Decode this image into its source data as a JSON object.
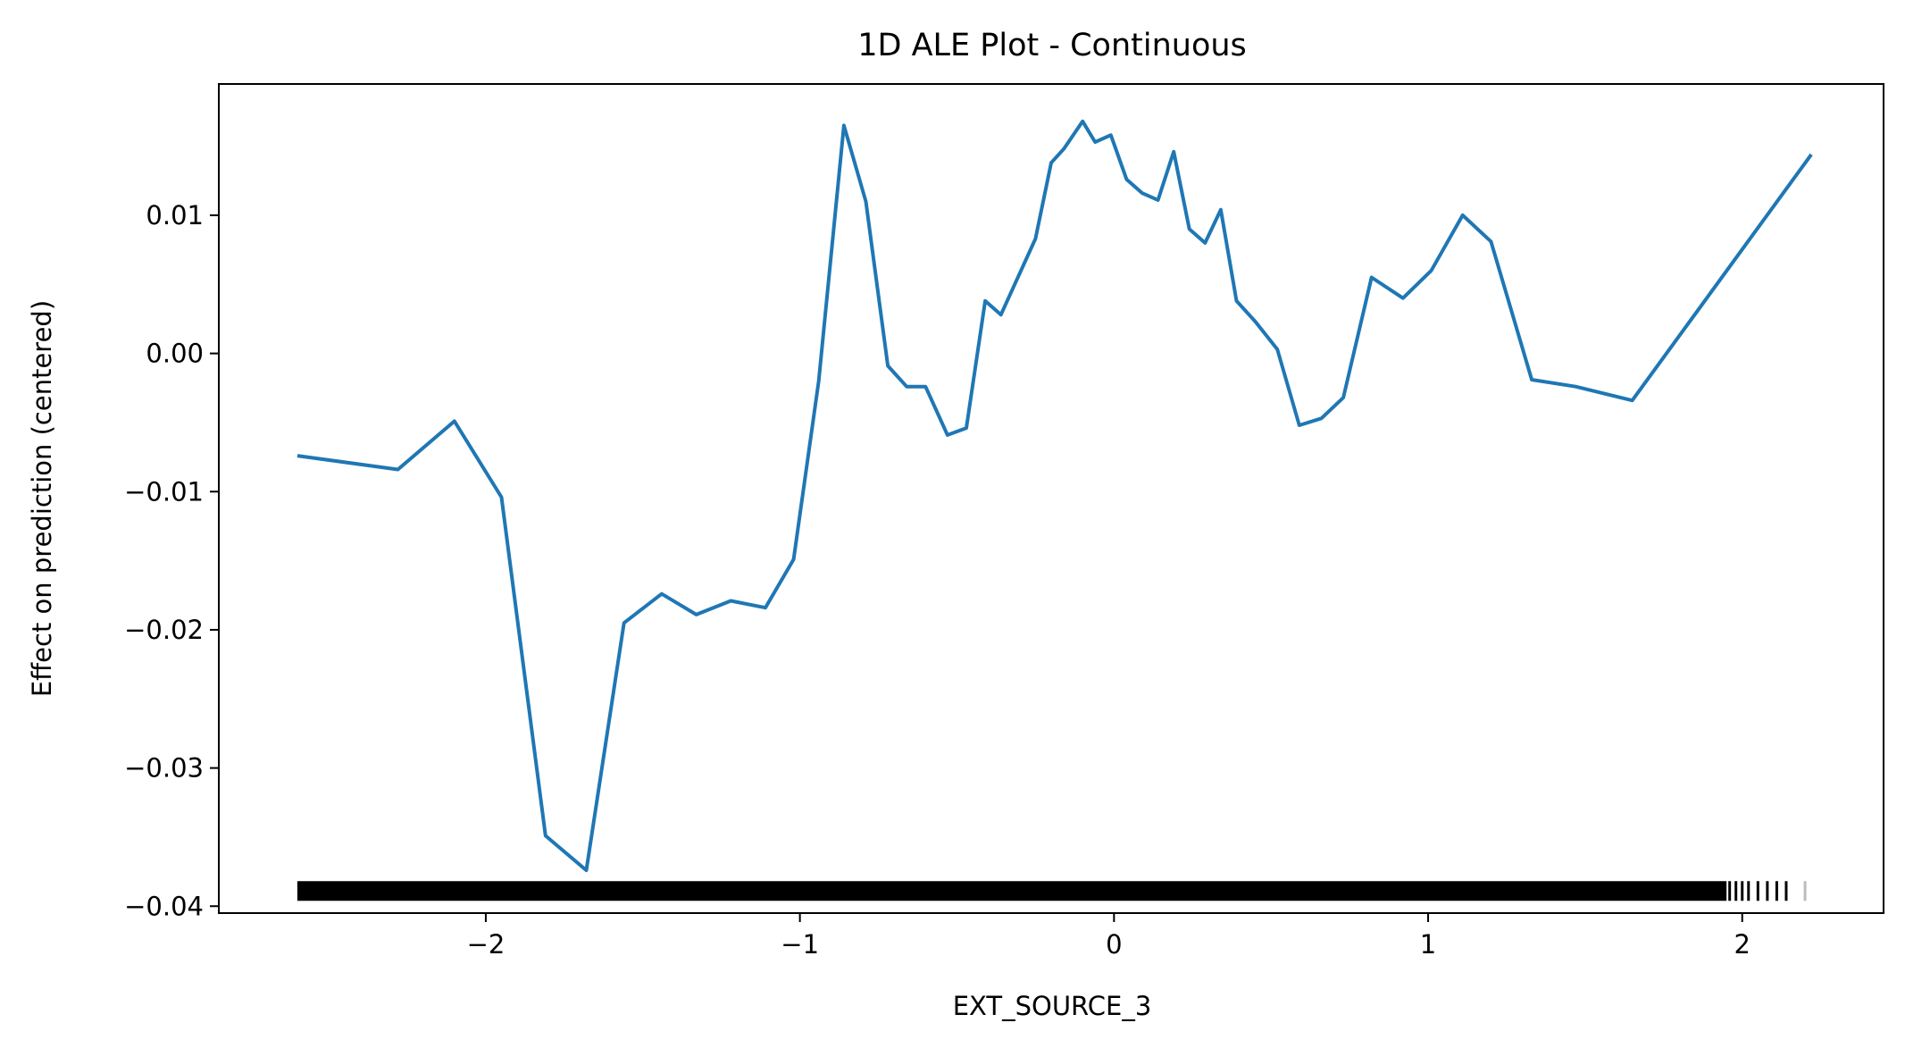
{
  "chart_data": {
    "type": "line",
    "title": "1D ALE Plot - Continuous",
    "xlabel": "EXT_SOURCE_3",
    "ylabel": "Effect on prediction (centered)",
    "xlim": [
      -2.85,
      2.45
    ],
    "ylim": [
      -0.0405,
      0.0195
    ],
    "x_ticks": [
      -2,
      -1,
      0,
      1,
      2
    ],
    "x_tick_labels": [
      "−2",
      "−1",
      "0",
      "1",
      "2"
    ],
    "y_ticks": [
      0.01,
      0.0,
      -0.01,
      -0.02,
      -0.03,
      -0.04
    ],
    "y_tick_labels": [
      "0.01",
      "0.00",
      "−0.01",
      "−0.02",
      "−0.03",
      "−0.04"
    ],
    "grid": false,
    "line_color": "#1f77b4",
    "rug_color": "#000000",
    "series": [
      {
        "x": [
          -2.6,
          -2.28,
          -2.1,
          -1.95,
          -1.81,
          -1.68,
          -1.56,
          -1.44,
          -1.33,
          -1.22,
          -1.11,
          -1.02,
          -0.94,
          -0.86,
          -0.79,
          -0.72,
          -0.66,
          -0.6,
          -0.53,
          -0.47,
          -0.41,
          -0.36,
          -0.31,
          -0.25,
          -0.2,
          -0.16,
          -0.1,
          -0.06,
          -0.01,
          0.04,
          0.09,
          0.14,
          0.19,
          0.24,
          0.29,
          0.34,
          0.39,
          0.45,
          0.52,
          0.59,
          0.66,
          0.73,
          0.82,
          0.92,
          1.01,
          1.11,
          1.2,
          1.33,
          1.47,
          1.65,
          2.22
        ],
        "y": [
          -0.0074,
          -0.0084,
          -0.0049,
          -0.0104,
          -0.0349,
          -0.0374,
          -0.0195,
          -0.0174,
          -0.0189,
          -0.0179,
          -0.0184,
          -0.0149,
          -0.002,
          0.0165,
          0.011,
          -0.0009,
          -0.0024,
          -0.0024,
          -0.0059,
          -0.0054,
          0.0038,
          0.0028,
          0.0053,
          0.0083,
          0.0138,
          0.0148,
          0.0168,
          0.0153,
          0.0158,
          0.0126,
          0.0116,
          0.0111,
          0.0146,
          0.009,
          0.008,
          0.0104,
          0.0038,
          0.0023,
          0.0003,
          -0.0052,
          -0.0047,
          -0.0032,
          0.0055,
          0.004,
          0.006,
          0.01,
          0.0081,
          -0.0019,
          -0.0024,
          -0.0034,
          0.0144
        ]
      }
    ],
    "rug": {
      "y": -0.0389,
      "dense_range": [
        -2.6,
        1.95
      ],
      "sparse_x": [
        1.96,
        1.98,
        2.0,
        2.02,
        2.05,
        2.08,
        2.11,
        2.14,
        2.2
      ]
    }
  }
}
